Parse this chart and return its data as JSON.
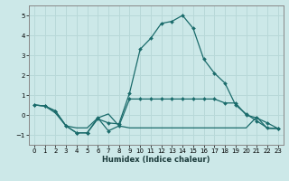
{
  "xlabel": "Humidex (Indice chaleur)",
  "bg_color": "#cce8e8",
  "grid_color": "#b8d8d8",
  "line_color": "#1a6b6b",
  "xlim": [
    -0.5,
    23.5
  ],
  "ylim": [
    -1.5,
    5.5
  ],
  "yticks": [
    -1,
    0,
    1,
    2,
    3,
    4,
    5
  ],
  "xticks": [
    0,
    1,
    2,
    3,
    4,
    5,
    6,
    7,
    8,
    9,
    10,
    11,
    12,
    13,
    14,
    15,
    16,
    17,
    18,
    19,
    20,
    21,
    22,
    23
  ],
  "line1_x": [
    0,
    1,
    2,
    3,
    4,
    5,
    6,
    7,
    8,
    9,
    10,
    11,
    12,
    13,
    14,
    15,
    16,
    17,
    18,
    19,
    20,
    21,
    22,
    23
  ],
  "line1_y": [
    0.5,
    0.45,
    0.2,
    -0.55,
    -0.9,
    -0.9,
    -0.2,
    -0.4,
    -0.45,
    1.1,
    3.3,
    3.85,
    4.6,
    4.7,
    5.0,
    4.35,
    2.8,
    2.1,
    1.6,
    0.5,
    0.05,
    -0.3,
    -0.65,
    -0.68
  ],
  "line2_x": [
    0,
    1,
    2,
    3,
    4,
    5,
    6,
    7,
    8,
    9,
    10,
    11,
    12,
    13,
    14,
    15,
    16,
    17,
    18,
    19,
    20,
    21,
    22,
    23
  ],
  "line2_y": [
    0.5,
    0.45,
    0.2,
    -0.55,
    -0.9,
    -0.9,
    -0.15,
    -0.8,
    -0.55,
    0.8,
    0.8,
    0.8,
    0.8,
    0.8,
    0.8,
    0.8,
    0.8,
    0.8,
    0.6,
    0.6,
    0.0,
    -0.15,
    -0.4,
    -0.68
  ],
  "line3_x": [
    0,
    1,
    2,
    3,
    4,
    5,
    6,
    7,
    8,
    9,
    10,
    11,
    12,
    13,
    14,
    15,
    16,
    17,
    18,
    19,
    20,
    21,
    22,
    23
  ],
  "line3_y": [
    0.5,
    0.45,
    0.1,
    -0.55,
    -0.65,
    -0.65,
    -0.15,
    0.05,
    -0.55,
    -0.65,
    -0.65,
    -0.65,
    -0.65,
    -0.65,
    -0.65,
    -0.65,
    -0.65,
    -0.65,
    -0.65,
    -0.65,
    -0.65,
    -0.1,
    -0.68,
    -0.68
  ]
}
